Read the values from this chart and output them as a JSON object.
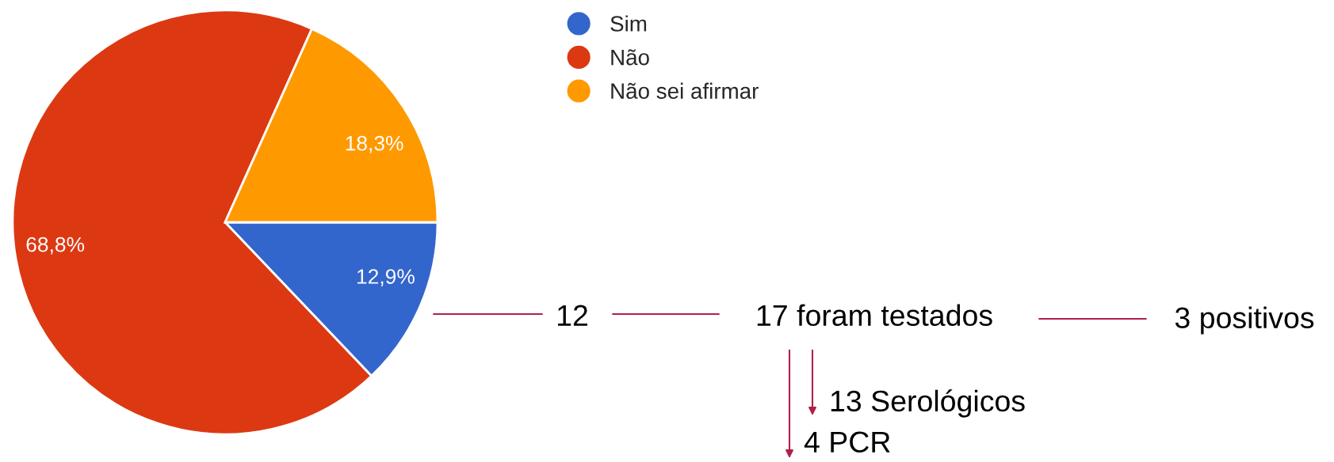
{
  "chart_data": {
    "type": "pie",
    "categories": [
      "Sim",
      "Não",
      "Não sei afirmar"
    ],
    "values": [
      12.9,
      68.8,
      18.3
    ],
    "colors": [
      "#3366cc",
      "#dc3912",
      "#ff9900"
    ],
    "value_labels": [
      "12,9%",
      "68,8%",
      "18,3%"
    ],
    "legend": "top right",
    "annotations": [
      "12",
      "17 foram testados",
      "3 positivos",
      "13 Serológicos",
      "4 PCR"
    ]
  }
}
